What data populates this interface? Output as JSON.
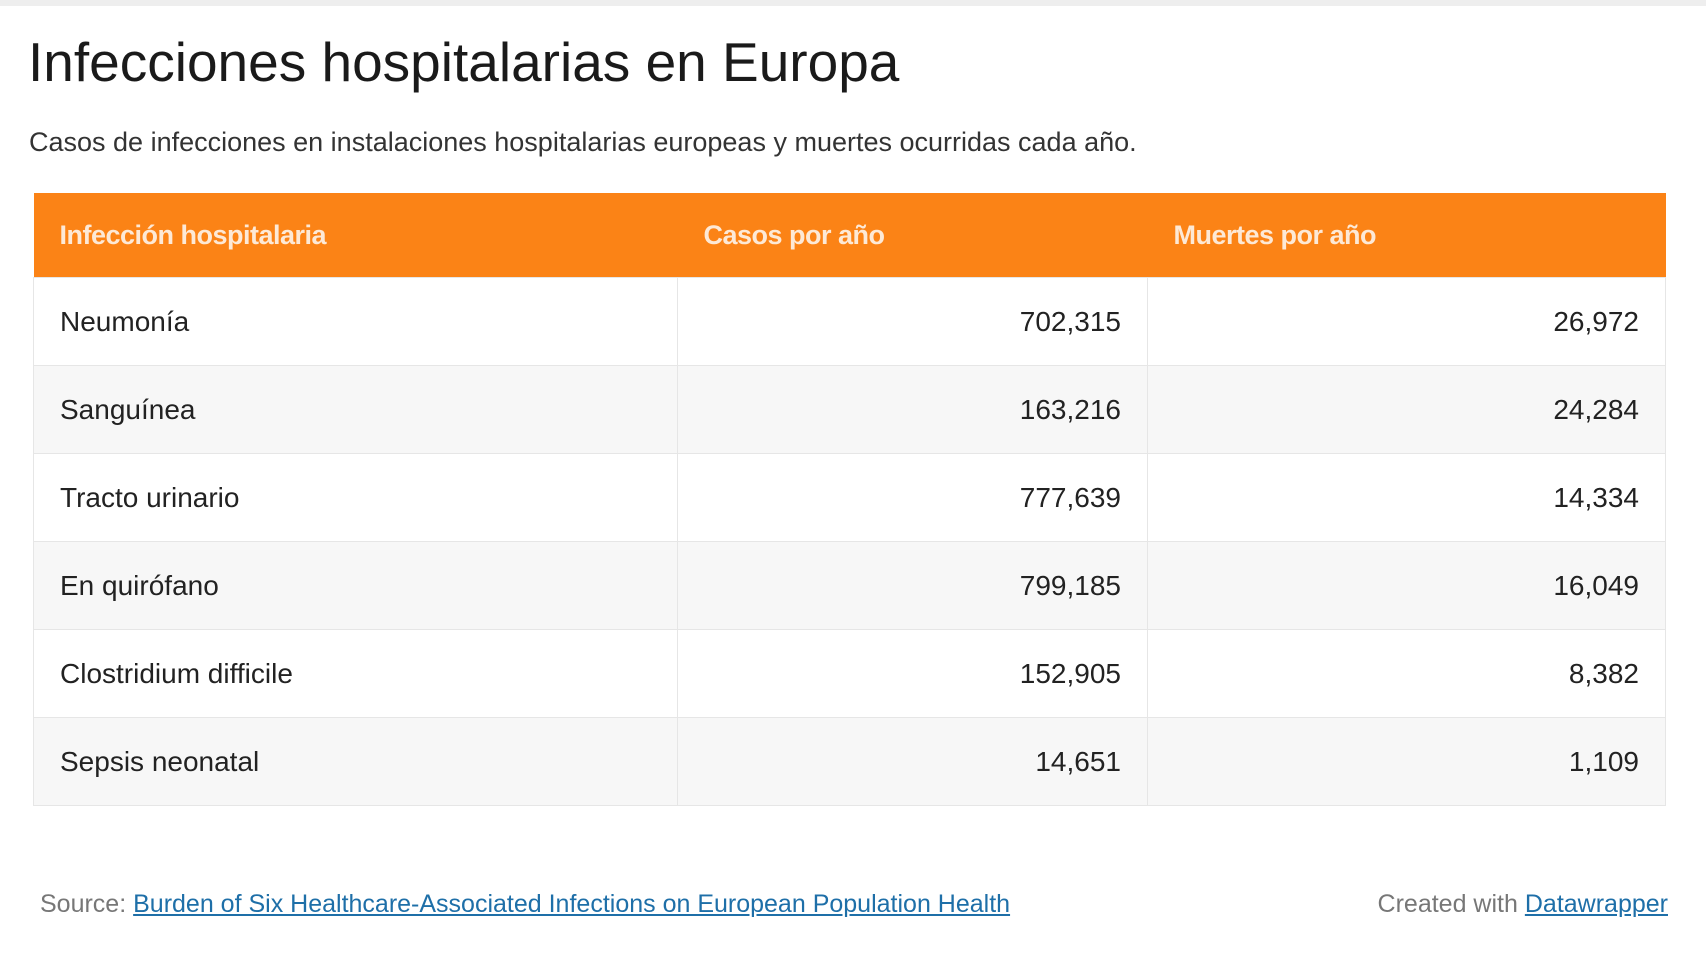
{
  "title": "Infecciones hospitalarias en Europa",
  "subtitle": "Casos de infecciones en instalaciones hospitalarias europeas y muertes ocurridas cada año.",
  "table": {
    "headers": [
      "Infección hospitalaria",
      "Casos por año",
      "Muertes por año"
    ],
    "rows": [
      [
        "Neumonía",
        "702,315",
        "26,972"
      ],
      [
        "Sanguínea",
        "163,216",
        "24,284"
      ],
      [
        "Tracto urinario",
        "777,639",
        "14,334"
      ],
      [
        "En quirófano",
        "799,185",
        "16,049"
      ],
      [
        "Clostridium difficile",
        "152,905",
        "8,382"
      ],
      [
        "Sepsis neonatal",
        "14,651",
        "1,109"
      ]
    ]
  },
  "footer": {
    "source_label": "Source:",
    "source_link": "Burden of Six Healthcare-Associated Infections on European Population Health",
    "created_label": "Created with",
    "created_link": "Datawrapper"
  },
  "colors": {
    "header": "#fb8316",
    "link": "#1e6fa8"
  }
}
